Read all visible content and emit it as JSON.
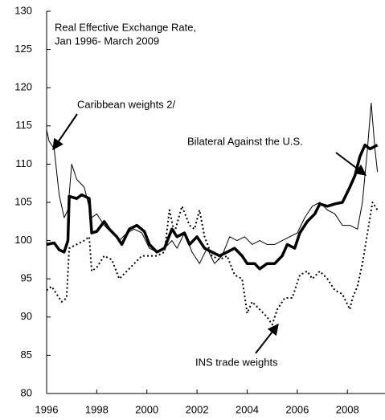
{
  "chart_data": {
    "type": "line",
    "title": [
      "Real Effective Exchange Rate,",
      "Jan 1996- March 2009"
    ],
    "xlim": [
      1996,
      2009.5
    ],
    "xticks": [
      1996,
      1998,
      2000,
      2002,
      2004,
      2006,
      2008
    ],
    "ylim": [
      80,
      130
    ],
    "yticks": [
      80,
      85,
      90,
      95,
      100,
      105,
      110,
      115,
      120,
      125,
      130
    ],
    "grid": false,
    "series": [
      {
        "name": "Bilateral Against the U.S.",
        "color": "#000000",
        "style": "thick",
        "x": [
          1996.0,
          1996.3,
          1996.5,
          1996.7,
          1996.85,
          1996.9,
          1997.2,
          1997.4,
          1997.7,
          1997.8,
          1998.0,
          1998.3,
          1998.5,
          1998.8,
          1999.0,
          1999.3,
          1999.6,
          1999.9,
          2000.1,
          2000.4,
          2000.7,
          2001.0,
          2001.2,
          2001.5,
          2001.7,
          2002.0,
          2002.3,
          2002.6,
          2002.9,
          2003.2,
          2003.5,
          2003.8,
          2004.0,
          2004.3,
          2004.5,
          2004.8,
          2005.1,
          2005.4,
          2005.6,
          2005.9,
          2006.1,
          2006.4,
          2006.7,
          2006.9,
          2007.2,
          2007.5,
          2007.8,
          2007.95,
          2008.1,
          2008.3,
          2008.5,
          2008.7,
          2008.9,
          2009.2
        ],
        "values": [
          99.5,
          99.7,
          98.8,
          98.5,
          100,
          105.8,
          105.5,
          106,
          105.5,
          101,
          101.2,
          102.5,
          101.5,
          100.5,
          99.5,
          101.5,
          102,
          101.2,
          99.5,
          98.5,
          99,
          101.5,
          100.5,
          101,
          99.5,
          100.5,
          99,
          98.5,
          98,
          98.5,
          99,
          98,
          97,
          97,
          96.3,
          97,
          97,
          98,
          99.5,
          99,
          101,
          102.5,
          103.5,
          104.8,
          104.5,
          104.8,
          105,
          106,
          107,
          108.5,
          111,
          112.5,
          112,
          112.5
        ]
      },
      {
        "name": "Caribbean weights 2/",
        "color": "#000000",
        "style": "thin",
        "x": [
          1996.0,
          1996.1,
          1996.3,
          1996.5,
          1996.7,
          1996.85,
          1997.0,
          1997.2,
          1997.5,
          1997.8,
          1998.0,
          1998.3,
          1998.6,
          1998.9,
          1999.2,
          1999.5,
          1999.8,
          2000.1,
          2000.4,
          2000.7,
          2001.0,
          2001.2,
          2001.5,
          2001.8,
          2002.1,
          2002.4,
          2002.7,
          2003.0,
          2003.3,
          2003.6,
          2003.9,
          2004.2,
          2004.5,
          2004.8,
          2005.1,
          2005.4,
          2005.7,
          2006.0,
          2006.3,
          2006.6,
          2006.9,
          2007.2,
          2007.5,
          2007.8,
          2008.1,
          2008.4,
          2008.6,
          2008.8,
          2008.95,
          2009.1,
          2009.2
        ],
        "values": [
          114.5,
          113,
          112,
          106,
          103,
          104,
          110,
          108,
          107,
          103,
          103.5,
          102,
          101,
          100,
          101,
          101.5,
          101,
          99,
          98.5,
          99,
          100,
          99,
          101,
          98.5,
          97,
          99,
          97,
          98,
          100.5,
          100,
          100.5,
          99.5,
          100,
          99.5,
          99.5,
          100,
          100.5,
          101,
          103,
          104.5,
          105,
          104,
          103.5,
          102,
          102,
          101.5,
          105,
          112,
          118,
          112,
          109
        ]
      },
      {
        "name": "INS trade weights",
        "color": "#000000",
        "style": "dotted",
        "x": [
          1996.0,
          1996.2,
          1996.4,
          1996.6,
          1996.8,
          1996.9,
          1997.2,
          1997.5,
          1997.7,
          1997.8,
          1998.0,
          1998.3,
          1998.6,
          1998.9,
          1999.2,
          1999.5,
          1999.8,
          2000.1,
          2000.4,
          2000.7,
          2000.9,
          2001.1,
          2001.4,
          2001.7,
          2001.9,
          2002.1,
          2002.3,
          2002.6,
          2002.9,
          2003.2,
          2003.5,
          2003.8,
          2004.0,
          2004.2,
          2004.5,
          2004.8,
          2005.0,
          2005.2,
          2005.5,
          2005.8,
          2006.1,
          2006.4,
          2006.6,
          2006.9,
          2007.2,
          2007.5,
          2007.8,
          2008.1,
          2008.2,
          2008.4,
          2008.6,
          2008.8,
          2009.0,
          2009.2
        ],
        "values": [
          93.5,
          94,
          93,
          92,
          92.5,
          99,
          99.5,
          100,
          100.5,
          96,
          96.5,
          98,
          97.5,
          95,
          96,
          97,
          98,
          98,
          98,
          98.5,
          104,
          101,
          104.5,
          102,
          101.5,
          104,
          100.5,
          98,
          97.5,
          98,
          95.5,
          95,
          90.5,
          92,
          91,
          90,
          89,
          91,
          92.5,
          92.5,
          95.5,
          96,
          95,
          96,
          95,
          93.5,
          93,
          91,
          92.5,
          94,
          97,
          101,
          105,
          104
        ]
      }
    ]
  }
}
